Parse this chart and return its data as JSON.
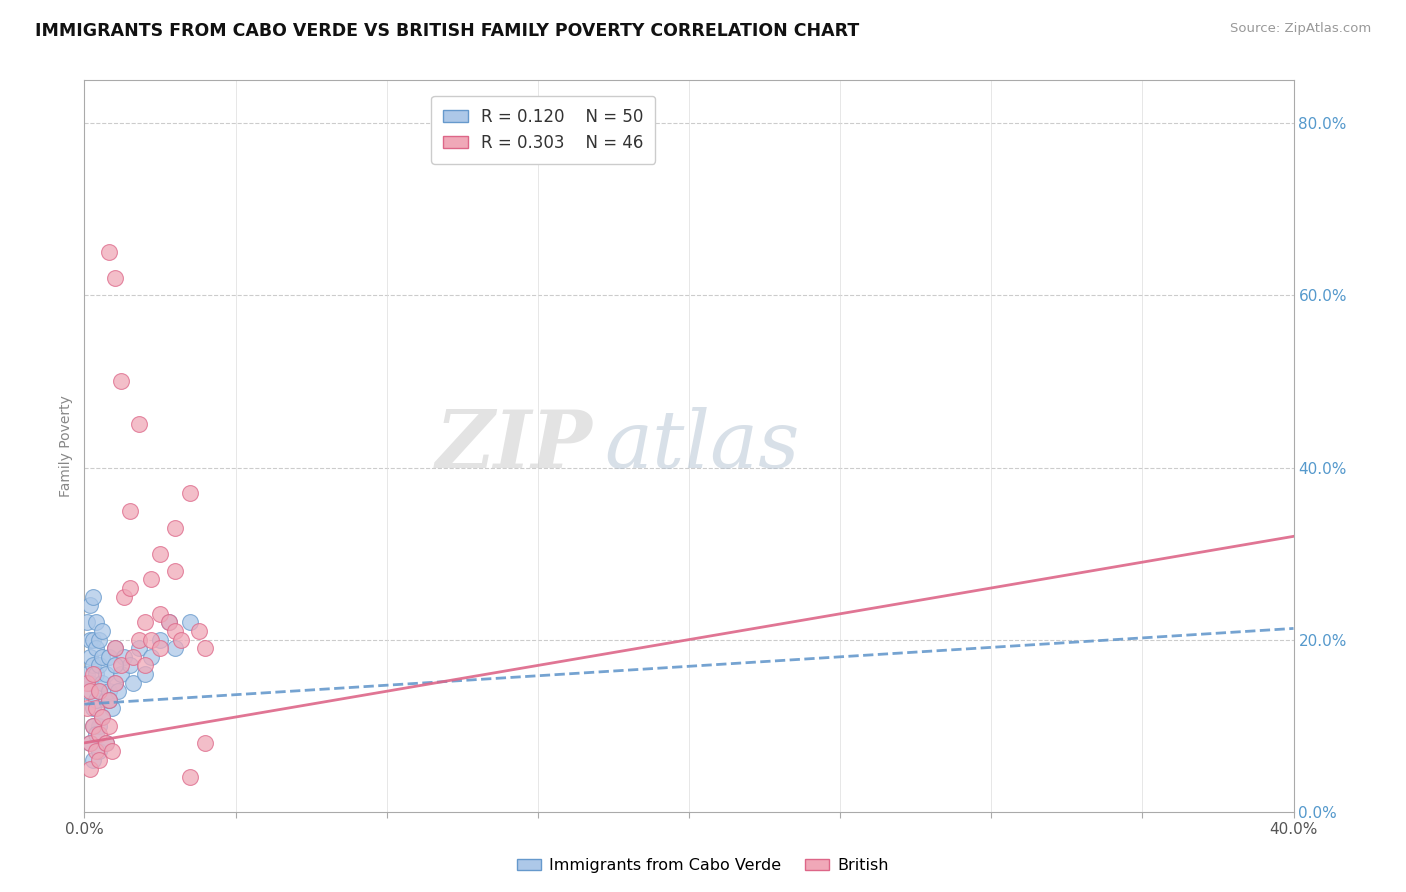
{
  "title": "IMMIGRANTS FROM CABO VERDE VS BRITISH FAMILY POVERTY CORRELATION CHART",
  "source": "Source: ZipAtlas.com",
  "ylabel": "Family Poverty",
  "xlim": [
    0.0,
    0.4
  ],
  "ylim": [
    0.0,
    0.85
  ],
  "yticks_right": [
    0.0,
    0.2,
    0.4,
    0.6,
    0.8
  ],
  "blue_color": "#adc8e8",
  "pink_color": "#f0a8b8",
  "blue_line_color": "#6699cc",
  "pink_line_color": "#dd6688",
  "legend_r_blue": "R = 0.120",
  "legend_n_blue": "N = 50",
  "legend_r_pink": "R = 0.303",
  "legend_n_pink": "N = 46",
  "label_blue": "Immigrants from Cabo Verde",
  "label_pink": "British",
  "watermark_zip": "ZIP",
  "watermark_atlas": "atlas",
  "background_color": "#ffffff",
  "grid_color": "#cccccc",
  "blue_scatter_x": [
    0.001,
    0.001,
    0.001,
    0.002,
    0.002,
    0.002,
    0.002,
    0.003,
    0.003,
    0.003,
    0.003,
    0.004,
    0.004,
    0.004,
    0.004,
    0.005,
    0.005,
    0.005,
    0.005,
    0.006,
    0.006,
    0.006,
    0.007,
    0.007,
    0.008,
    0.008,
    0.009,
    0.01,
    0.01,
    0.011,
    0.012,
    0.013,
    0.015,
    0.016,
    0.018,
    0.02,
    0.022,
    0.025,
    0.028,
    0.03,
    0.002,
    0.003,
    0.003,
    0.004,
    0.005,
    0.006,
    0.007,
    0.008,
    0.01,
    0.035
  ],
  "blue_scatter_y": [
    0.14,
    0.16,
    0.22,
    0.18,
    0.2,
    0.24,
    0.15,
    0.12,
    0.17,
    0.2,
    0.25,
    0.13,
    0.16,
    0.19,
    0.22,
    0.14,
    0.17,
    0.2,
    0.1,
    0.15,
    0.18,
    0.21,
    0.13,
    0.16,
    0.14,
    0.18,
    0.12,
    0.15,
    0.19,
    0.14,
    0.16,
    0.18,
    0.17,
    0.15,
    0.19,
    0.16,
    0.18,
    0.2,
    0.22,
    0.19,
    0.08,
    0.1,
    0.06,
    0.09,
    0.07,
    0.11,
    0.08,
    0.13,
    0.17,
    0.22
  ],
  "pink_scatter_x": [
    0.001,
    0.001,
    0.002,
    0.002,
    0.002,
    0.003,
    0.003,
    0.004,
    0.004,
    0.005,
    0.005,
    0.005,
    0.006,
    0.007,
    0.008,
    0.008,
    0.009,
    0.01,
    0.01,
    0.012,
    0.013,
    0.015,
    0.016,
    0.018,
    0.02,
    0.02,
    0.022,
    0.025,
    0.025,
    0.028,
    0.03,
    0.03,
    0.032,
    0.035,
    0.038,
    0.04,
    0.008,
    0.01,
    0.012,
    0.015,
    0.018,
    0.022,
    0.025,
    0.03,
    0.035,
    0.04
  ],
  "pink_scatter_y": [
    0.12,
    0.15,
    0.08,
    0.14,
    0.05,
    0.1,
    0.16,
    0.07,
    0.12,
    0.09,
    0.14,
    0.06,
    0.11,
    0.08,
    0.13,
    0.1,
    0.07,
    0.15,
    0.19,
    0.17,
    0.25,
    0.26,
    0.18,
    0.2,
    0.17,
    0.22,
    0.2,
    0.19,
    0.23,
    0.22,
    0.21,
    0.28,
    0.2,
    0.37,
    0.21,
    0.19,
    0.65,
    0.62,
    0.5,
    0.35,
    0.45,
    0.27,
    0.3,
    0.33,
    0.04,
    0.08
  ]
}
